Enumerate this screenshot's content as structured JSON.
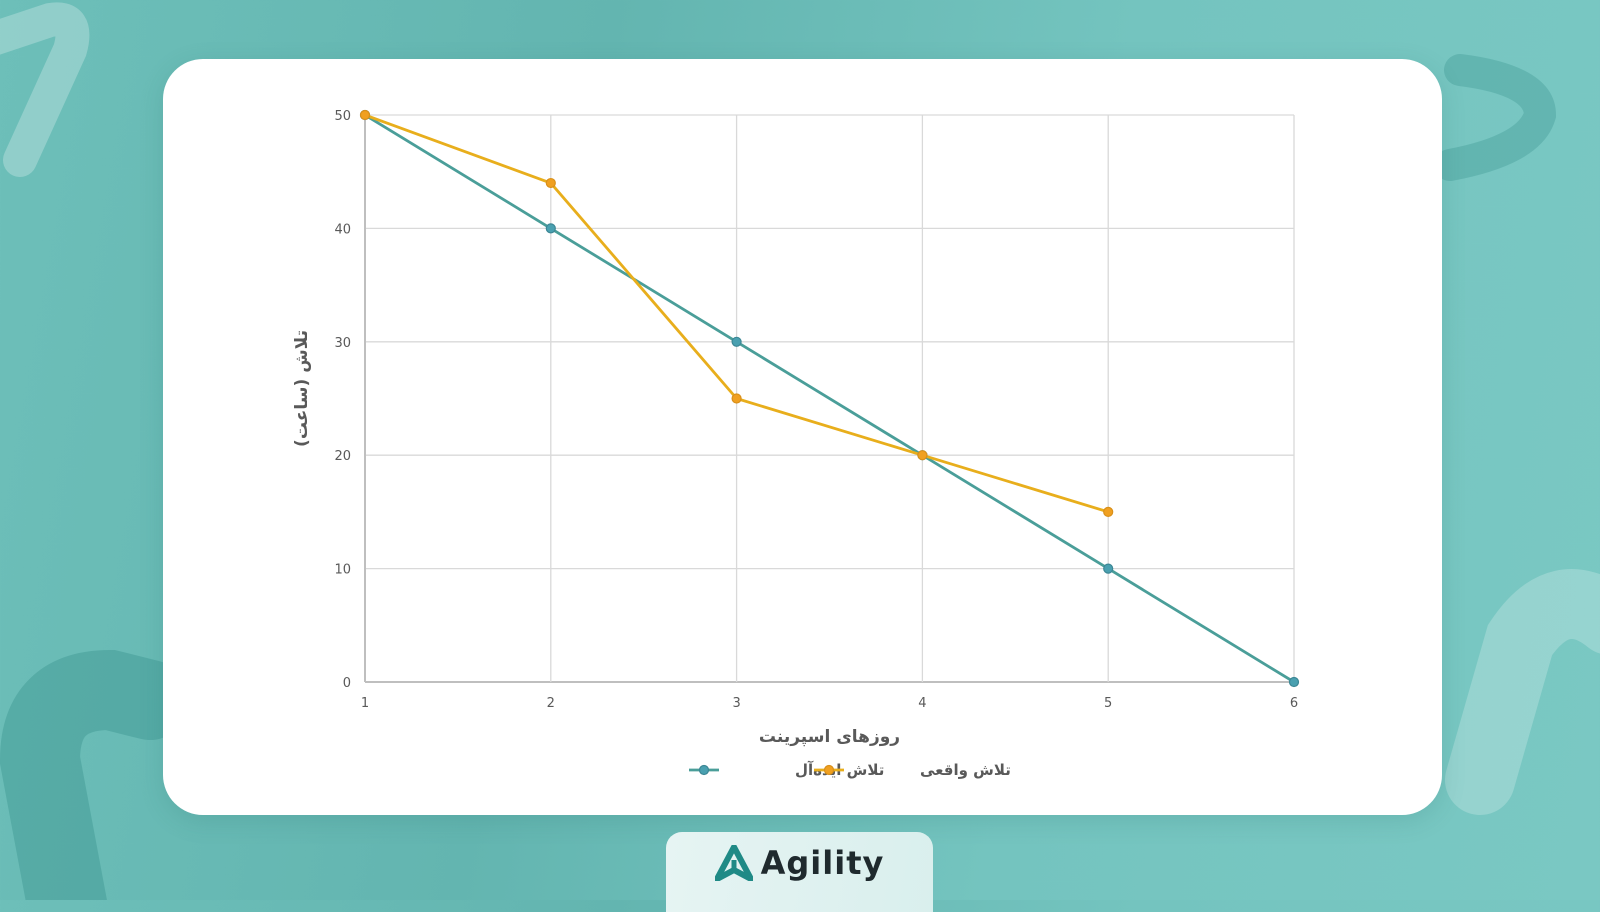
{
  "colors": {
    "background": "#6dbfb9",
    "card": "#ffffff",
    "ideal_line": "#4a9e99",
    "ideal_marker": "#4aa0b0",
    "actual_line": "#e8ae1c",
    "actual_marker": "#f0a020",
    "grid": "#d9d9d9",
    "axis_text": "#595959",
    "brand_accent": "#1f8a86"
  },
  "brand": {
    "name": "Agility"
  },
  "chart_data": {
    "type": "line",
    "title": "",
    "xlabel": "روزهای اسپرینت",
    "ylabel": "تلاش (ساعت)",
    "x": [
      1,
      2,
      3,
      4,
      5,
      6
    ],
    "x_tick_labels": [
      "1",
      "2",
      "3",
      "4",
      "5",
      "6"
    ],
    "y_tick_labels": [
      "0",
      "10",
      "20",
      "30",
      "40",
      "50"
    ],
    "ylim": [
      0,
      50
    ],
    "grid": true,
    "legend_position": "bottom",
    "series": [
      {
        "name": "تلاش ایده‌آل",
        "values": [
          50,
          40,
          30,
          20,
          10,
          0
        ],
        "color": "#4a9e99"
      },
      {
        "name": "تلاش واقعی",
        "values": [
          50,
          44,
          25,
          20,
          15,
          null
        ],
        "color": "#e8ae1c"
      }
    ]
  }
}
